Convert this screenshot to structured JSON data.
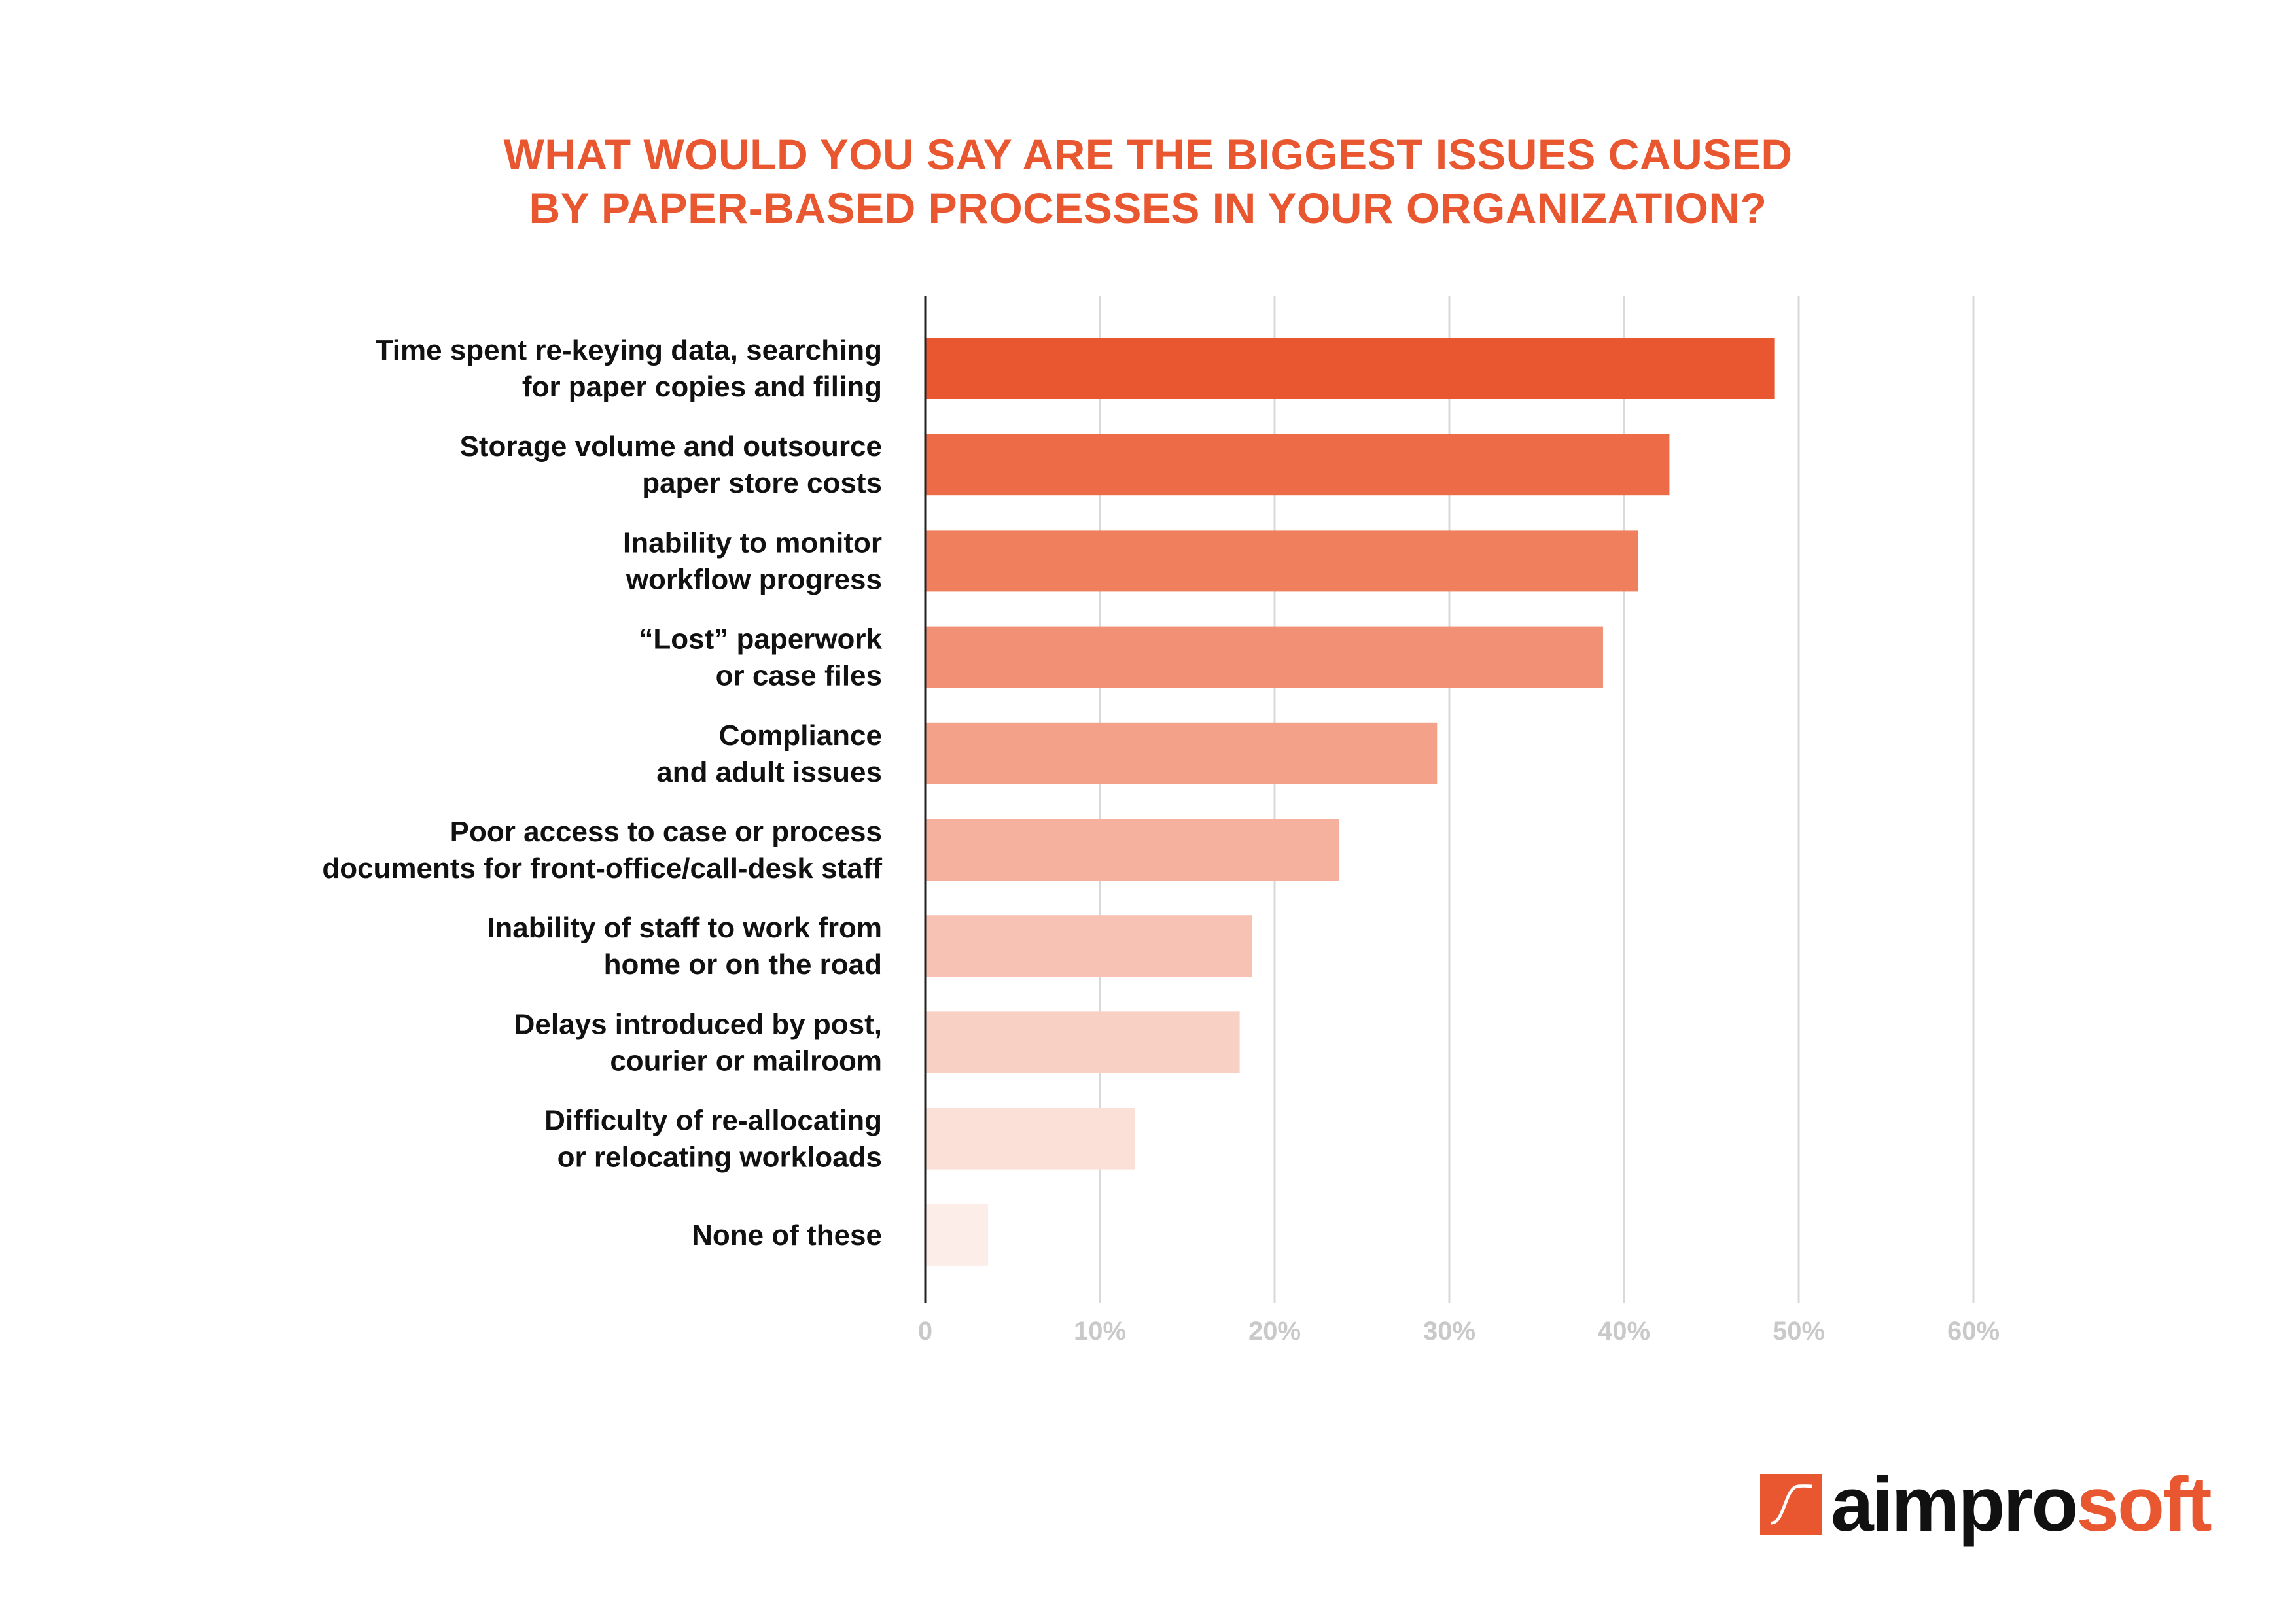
{
  "colors": {
    "accent": "#e95731",
    "label": "#111111",
    "tick": "#c9c9c9",
    "grid": "#d9d9d9",
    "axis": "#222222"
  },
  "chart_data": {
    "type": "bar",
    "orientation": "horizontal",
    "title": "WHAT WOULD YOU SAY ARE THE BIGGEST ISSUES CAUSED BY PAPER-BASED PROCESSES IN YOUR ORGANIZATION?",
    "title_lines": [
      "WHAT WOULD YOU SAY ARE THE BIGGEST ISSUES CAUSED",
      "BY PAPER-BASED PROCESSES IN YOUR ORGANIZATION?"
    ],
    "categories": [
      [
        "Time spent re-keying data, searching",
        "for paper copies and filing"
      ],
      [
        "Storage volume and outsource",
        "paper store costs"
      ],
      [
        "Inability to monitor",
        "workflow progress"
      ],
      [
        "“Lost” paperwork",
        "or case files"
      ],
      [
        "Compliance",
        "and adult issues"
      ],
      [
        "Poor access to case or process",
        "documents for front-office/call-desk staff"
      ],
      [
        "Inability of staff to work from",
        "home or on the road"
      ],
      [
        "Delays introduced by post,",
        "courier or mailroom"
      ],
      [
        "Difficulty of re-allocating",
        "or relocating workloads"
      ],
      [
        "None of these"
      ]
    ],
    "values": [
      48.6,
      42.6,
      40.8,
      38.8,
      29.3,
      23.7,
      18.7,
      18.0,
      12.0,
      3.6
    ],
    "bar_colors": [
      "#e95731",
      "#ed6b47",
      "#ef7f5d",
      "#f19074",
      "#f3a189",
      "#f5b19e",
      "#f7c2b3",
      "#f8d0c4",
      "#fae0d7",
      "#fcede8"
    ],
    "xlim": [
      0,
      60
    ],
    "ticks": [
      {
        "value": 0,
        "label": "0"
      },
      {
        "value": 10,
        "label": "10%"
      },
      {
        "value": 20,
        "label": "20%"
      },
      {
        "value": 30,
        "label": "30%"
      },
      {
        "value": 40,
        "label": "40%"
      },
      {
        "value": 50,
        "label": "50%"
      },
      {
        "value": 60,
        "label": "60%"
      }
    ],
    "grid": true,
    "xlabel": "",
    "ylabel": ""
  },
  "logo": {
    "part_dark": "aimpro",
    "part_accent": "soft"
  }
}
